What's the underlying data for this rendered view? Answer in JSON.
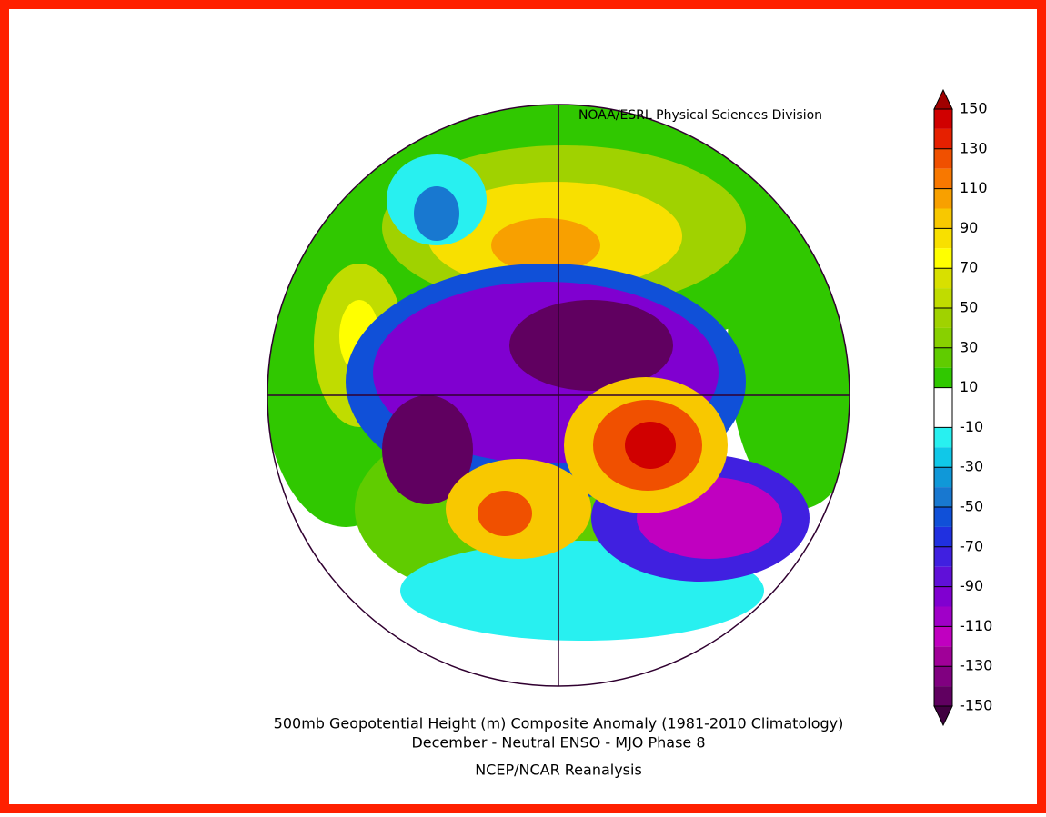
{
  "header": {
    "credit": "NOAA/ESRL Physical Sciences Division"
  },
  "title": [
    "500mb Geopotential Height (m) Composite Anomaly (1981-2010 Climatology)",
    "December - Neutral ENSO - MJO Phase 8"
  ],
  "source": "NCEP/NCAR Reanalysis",
  "colorbar": {
    "ticks": [
      150,
      130,
      110,
      90,
      70,
      50,
      30,
      10,
      -10,
      -30,
      -50,
      -70,
      -90,
      -110,
      -130,
      -150
    ],
    "over_color": "#a00000",
    "under_color": "#400040",
    "colors": [
      "#d00000",
      "#e62000",
      "#f05000",
      "#f87800",
      "#f8a000",
      "#f8c800",
      "#f8e000",
      "#ffff00",
      "#d8e000",
      "#c0dc00",
      "#a0d200",
      "#88d000",
      "#60cc00",
      "#30c800",
      "#ffffff",
      "#28f0f0",
      "#10c8e8",
      "#1098d8",
      "#1878d0",
      "#1050d8",
      "#2030e0",
      "#4020e0",
      "#6010d8",
      "#8000d0",
      "#a000c8",
      "#c000c0",
      "#a00098",
      "#800080",
      "#600060"
    ]
  }
}
